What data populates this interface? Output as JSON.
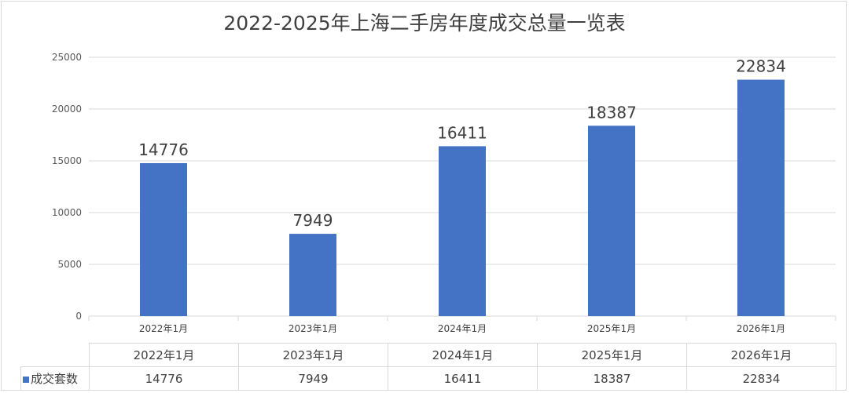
{
  "colors": {
    "bar": "#4472c4",
    "grid": "#d9d9d9",
    "text": "#404040"
  },
  "chart_data": {
    "type": "bar",
    "title": "2022-2025年上海二手房年度成交总量一览表",
    "categories": [
      "2022年1月",
      "2023年1月",
      "2024年1月",
      "2025年1月",
      "2026年1月"
    ],
    "series": [
      {
        "name": "成交套数",
        "values": [
          14776,
          7949,
          16411,
          18387,
          22834
        ]
      }
    ],
    "ylim": [
      0,
      25000
    ],
    "yticks": [
      0,
      5000,
      10000,
      15000,
      20000,
      25000
    ],
    "grid": true,
    "data_labels": true,
    "data_table": true,
    "legend": "data-table"
  }
}
